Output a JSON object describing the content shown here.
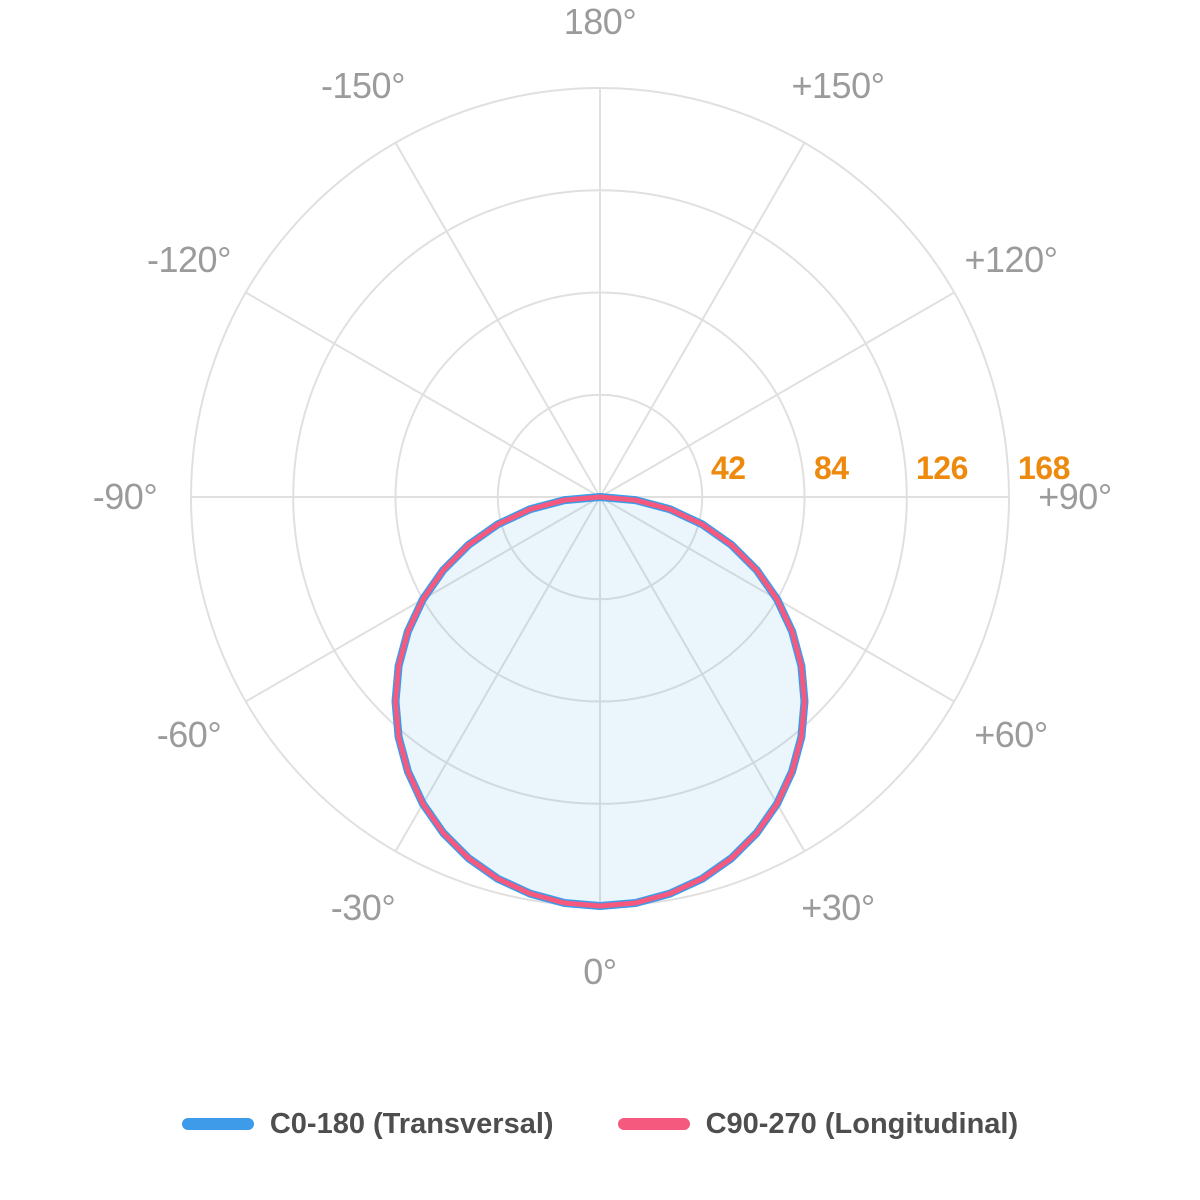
{
  "chart_data": {
    "type": "line",
    "polar": true,
    "description": "Photometric polar light-distribution curve",
    "r_max": 168,
    "grid_color": "#E0E0E0",
    "fill_color": "rgba(61,155,229,0.10)",
    "angle_label_color": "#9B9B9B",
    "radial_label_color": "#ED8A0D",
    "angle_labels": [
      {
        "angle": 180,
        "label": "180°"
      },
      {
        "angle": -150,
        "label": "-150°"
      },
      {
        "angle": 150,
        "label": "+150°"
      },
      {
        "angle": -120,
        "label": "-120°"
      },
      {
        "angle": 120,
        "label": "+120°"
      },
      {
        "angle": -90,
        "label": "-90°"
      },
      {
        "angle": 90,
        "label": "+90°"
      },
      {
        "angle": -60,
        "label": "-60°"
      },
      {
        "angle": 60,
        "label": "+60°"
      },
      {
        "angle": -30,
        "label": "-30°"
      },
      {
        "angle": 30,
        "label": "+30°"
      },
      {
        "angle": 0,
        "label": "0°"
      }
    ],
    "radial_ticks": [
      {
        "value": 42,
        "label": "42"
      },
      {
        "value": 84,
        "label": "84"
      },
      {
        "value": 126,
        "label": "126"
      },
      {
        "value": 168,
        "label": "168"
      }
    ],
    "angles": [
      -90,
      -85,
      -80,
      -75,
      -70,
      -65,
      -60,
      -55,
      -50,
      -45,
      -40,
      -35,
      -30,
      -25,
      -20,
      -15,
      -10,
      -5,
      0,
      5,
      10,
      15,
      20,
      25,
      30,
      35,
      40,
      45,
      50,
      55,
      60,
      65,
      70,
      75,
      80,
      85,
      90
    ],
    "series": [
      {
        "name": "C0-180 (Transversal)",
        "color": "#3D9BE9",
        "line_width": 8,
        "values": [
          0,
          14.6,
          29.2,
          43.5,
          57.5,
          71.0,
          84.0,
          96.4,
          108.0,
          118.8,
          128.7,
          137.6,
          145.5,
          152.3,
          157.9,
          162.3,
          165.4,
          167.4,
          168.0,
          167.4,
          165.4,
          162.3,
          157.9,
          152.3,
          145.5,
          137.6,
          128.7,
          118.8,
          108.0,
          96.4,
          84.0,
          71.0,
          57.5,
          43.5,
          29.2,
          14.6,
          0
        ]
      },
      {
        "name": "C90-270 (Longitudinal)",
        "color": "#F5597D",
        "line_width": 5,
        "values": [
          0,
          14.6,
          29.2,
          43.5,
          57.5,
          71.0,
          84.0,
          96.4,
          108.0,
          118.8,
          128.7,
          137.6,
          145.5,
          152.3,
          157.9,
          162.3,
          165.4,
          167.4,
          168.0,
          167.4,
          165.4,
          162.3,
          157.9,
          152.3,
          145.5,
          137.6,
          128.7,
          118.8,
          108.0,
          96.4,
          84.0,
          71.0,
          57.5,
          43.5,
          29.2,
          14.6,
          0
        ]
      }
    ]
  },
  "legend": {
    "items": [
      {
        "label": "C0-180 (Transversal)",
        "color": "#3D9BE9"
      },
      {
        "label": "C90-270 (Longitudinal)",
        "color": "#F5597D"
      }
    ]
  }
}
